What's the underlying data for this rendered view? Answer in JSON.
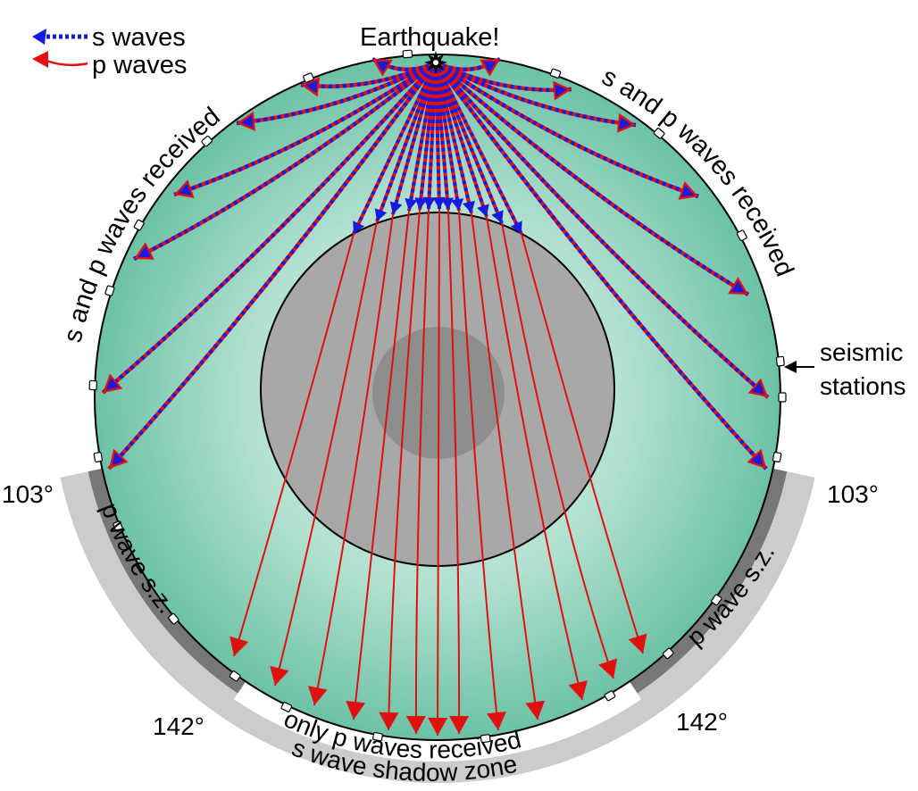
{
  "legend": {
    "s_waves": "s waves",
    "p_waves": "p waves"
  },
  "labels": {
    "earthquake": "Earthquake!",
    "sp_left": "s and p waves received",
    "sp_right": "s and p waves received",
    "seismic_line1": "seismic",
    "seismic_line2": "stations",
    "angle_103_left": "103°",
    "angle_103_right": "103°",
    "angle_142_left": "142°",
    "angle_142_right": "142°",
    "p_sz_left": "p wave s.z.",
    "p_sz_right": "p wave s.z.",
    "only_p": "only p waves received",
    "s_shadow": "s wave shadow zone"
  },
  "colors": {
    "mantle_center": "#c9ece1",
    "mantle_edge": "#6fc4a8",
    "outer_core": "#a8a8a8",
    "inner_core": "#8c8c8c",
    "s_wave": "#1a1adc",
    "p_wave": "#e01010",
    "p_shadow_zone": "#777777",
    "s_shadow_zone": "#cccccc"
  }
}
